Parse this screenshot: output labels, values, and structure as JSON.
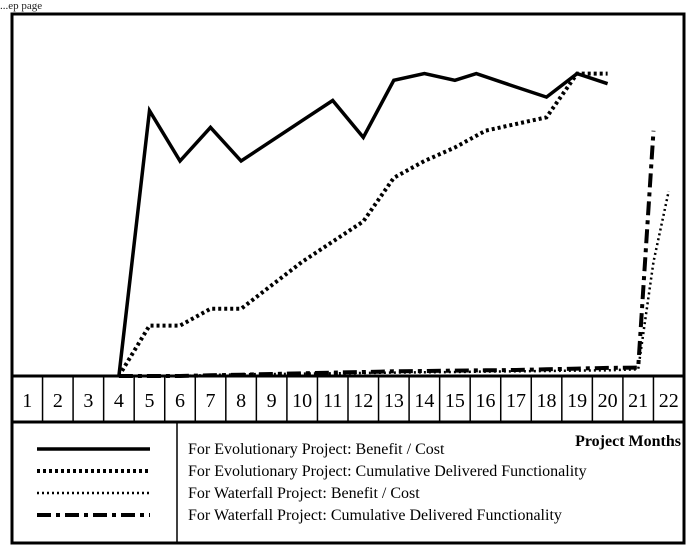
{
  "page_tag": "...ep page",
  "chart_data": {
    "type": "line",
    "title": "",
    "xlabel": "Project Months",
    "ylabel": "",
    "grid": false,
    "legend_position": "bottom",
    "x": [
      1,
      2,
      3,
      4,
      5,
      6,
      7,
      8,
      9,
      10,
      11,
      12,
      13,
      14,
      15,
      16,
      17,
      18,
      19,
      20,
      21,
      22
    ],
    "xlim": [
      0.5,
      22.5
    ],
    "ylim": [
      0,
      100
    ],
    "series": [
      {
        "name": "For Evolutionary Project: Benefit / Cost",
        "style": "solid",
        "x": [
          4,
          5,
          6,
          7,
          8,
          9,
          10,
          11,
          12,
          13,
          14,
          15,
          15.7,
          17,
          18,
          19,
          20
        ],
        "values": [
          0,
          79,
          64,
          74,
          64,
          70,
          76,
          82,
          71,
          88,
          90,
          88,
          90,
          86,
          83,
          90,
          87
        ]
      },
      {
        "name": "For Evolutionary Project: Cumulative Delivered Functionality",
        "style": "dotted-heavy",
        "x": [
          4,
          5,
          6,
          7,
          8,
          9,
          10,
          11,
          12,
          13,
          14,
          15,
          16,
          17,
          18,
          19,
          20
        ],
        "values": [
          0,
          15,
          15,
          20,
          20,
          27,
          34,
          40,
          46,
          59,
          64,
          68,
          73,
          75,
          77,
          90,
          90
        ]
      },
      {
        "name": "For Waterfall Project: Benefit / Cost",
        "style": "dotted-light",
        "x": [
          4,
          5,
          6,
          7,
          8,
          9,
          10,
          11,
          12,
          13,
          14,
          15,
          16,
          17,
          18,
          19,
          20,
          21,
          21.5,
          22
        ],
        "values": [
          0,
          0,
          0,
          0.3,
          0.5,
          0.6,
          0.7,
          0.8,
          0.9,
          1,
          1.1,
          1.2,
          1.3,
          1.4,
          1.5,
          1.6,
          1.7,
          2,
          34,
          55
        ]
      },
      {
        "name": "For Waterfall Project: Cumulative Delivered Functionality",
        "style": "dash-dot",
        "x": [
          4,
          5,
          6,
          7,
          8,
          9,
          10,
          11,
          12,
          13,
          14,
          15,
          16,
          17,
          18,
          19,
          20,
          21,
          21.5
        ],
        "values": [
          0,
          0,
          0,
          0.2,
          0.4,
          0.6,
          0.8,
          1,
          1.2,
          1.4,
          1.5,
          1.6,
          1.7,
          1.8,
          2,
          2.2,
          2.4,
          2.5,
          73
        ]
      }
    ]
  }
}
